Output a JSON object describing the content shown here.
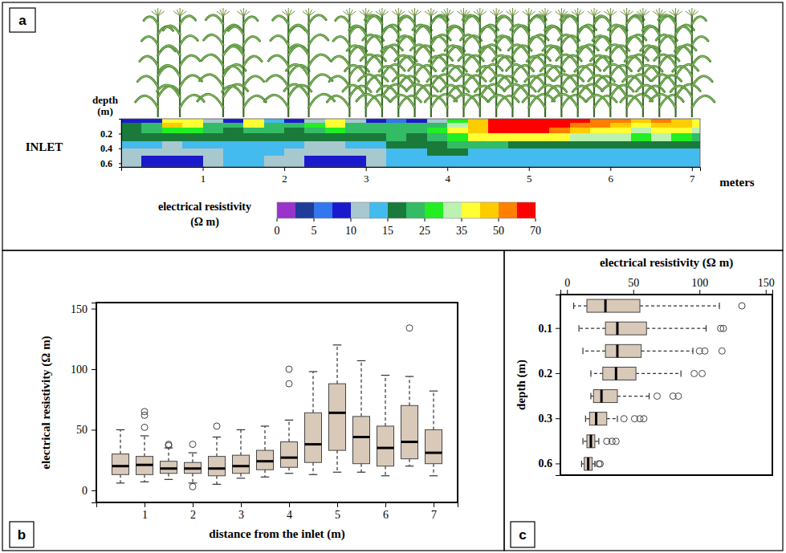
{
  "chart_data": [
    {
      "type": "heatmap",
      "panel": "a",
      "xlabel": "meters",
      "ylabel": "depth (m)",
      "annotations": [
        "INLET"
      ],
      "xlim": [
        0,
        7.1
      ],
      "xticks": [
        1,
        2,
        3,
        4,
        5,
        6,
        7
      ],
      "ylim": [
        0,
        0.65
      ],
      "yticks": [
        0.2,
        0.4,
        0.6
      ],
      "x_edges": [
        0,
        0.25,
        0.5,
        0.75,
        1,
        1.25,
        1.5,
        1.75,
        2,
        2.25,
        2.5,
        2.75,
        3,
        3.25,
        3.5,
        3.75,
        4,
        4.25,
        4.5,
        4.75,
        5,
        5.25,
        5.5,
        5.75,
        6,
        6.25,
        6.5,
        6.75,
        7,
        7.1
      ],
      "y_edges": [
        0,
        0.05,
        0.12,
        0.2,
        0.3,
        0.4,
        0.5,
        0.65
      ],
      "cells": [
        [
          8,
          9,
          42,
          38,
          12,
          9,
          40,
          14,
          9,
          12,
          36,
          10,
          8,
          7,
          9,
          12,
          28,
          45,
          72,
          75,
          75,
          74,
          60,
          55,
          50,
          45,
          52,
          48,
          40
        ],
        [
          18,
          22,
          45,
          40,
          24,
          20,
          38,
          22,
          20,
          26,
          38,
          22,
          20,
          22,
          22,
          24,
          33,
          48,
          75,
          78,
          76,
          72,
          58,
          52,
          45,
          40,
          48,
          45,
          36
        ],
        [
          16,
          20,
          28,
          26,
          22,
          18,
          24,
          20,
          18,
          22,
          26,
          20,
          22,
          24,
          24,
          26,
          35,
          45,
          62,
          65,
          60,
          55,
          45,
          40,
          38,
          34,
          40,
          38,
          30
        ],
        [
          17,
          18,
          18,
          18,
          17,
          16,
          17,
          16,
          16,
          17,
          18,
          17,
          18,
          20,
          19,
          20,
          28,
          38,
          42,
          40,
          38,
          36,
          32,
          30,
          30,
          28,
          30,
          28,
          24
        ],
        [
          14,
          13,
          12,
          13,
          14,
          14,
          14,
          14,
          13,
          12,
          12,
          13,
          14,
          15,
          15,
          17,
          22,
          20,
          20,
          19,
          18,
          18,
          18,
          17,
          17,
          17,
          18,
          17,
          16
        ],
        [
          12,
          11,
          10,
          10,
          12,
          13,
          13,
          13,
          12,
          11,
          10,
          10,
          12,
          13,
          14,
          15,
          15,
          14,
          14,
          14,
          14,
          14,
          14,
          14,
          14,
          14,
          14,
          14,
          14
        ],
        [
          11,
          8,
          8,
          9,
          12,
          13,
          13,
          12,
          12,
          9,
          8,
          8,
          11,
          13,
          13,
          14,
          14,
          14,
          13,
          13,
          13,
          13,
          13,
          14,
          14,
          14,
          14,
          14,
          13
        ]
      ],
      "colorbar": {
        "title": "electrical resistivity (Ω m)",
        "range": [
          0,
          70
        ],
        "ticks": [
          0,
          5,
          10,
          15,
          25,
          35,
          50,
          70
        ],
        "colors": [
          "#9933cc",
          "#1f3c99",
          "#3377ee",
          "#1a1acc",
          "#a8c8d0",
          "#44bbee",
          "#1a7a3a",
          "#33bb66",
          "#22ee22",
          "#bbf2b0",
          "#ffff33",
          "#ffcc00",
          "#ff7f00",
          "#ff0000"
        ]
      }
    },
    {
      "type": "box",
      "panel": "b",
      "xlabel": "distance from the inlet (m)",
      "ylabel": "electrical resistivity (Ω m)",
      "x": [
        0.5,
        1,
        1.5,
        2,
        2.5,
        3,
        3.5,
        4,
        4.5,
        5,
        5.5,
        6,
        6.5,
        7
      ],
      "xlim": [
        0,
        7.5
      ],
      "xticks": [
        1,
        2,
        3,
        4,
        5,
        6,
        7
      ],
      "ylim": [
        -10,
        155
      ],
      "yticks": [
        0,
        50,
        100,
        150
      ],
      "whisker_low": [
        6,
        7,
        9,
        6,
        5,
        10,
        11,
        14,
        13,
        15,
        15,
        12,
        20,
        12
      ],
      "q1": [
        13,
        13,
        14,
        14,
        12,
        14,
        17,
        19,
        23,
        33,
        22,
        20,
        26,
        22
      ],
      "median": [
        20,
        21,
        18,
        18,
        18,
        20,
        24,
        27,
        38,
        64,
        44,
        35,
        40,
        31
      ],
      "q3": [
        30,
        28,
        24,
        23,
        28,
        29,
        33,
        40,
        64,
        88,
        61,
        53,
        70,
        50
      ],
      "whisker_high": [
        50,
        45,
        35,
        31,
        44,
        50,
        53,
        58,
        98,
        120,
        107,
        95,
        94,
        82
      ],
      "outliers": [
        [],
        [
          52,
          62,
          65
        ],
        [
          37,
          38
        ],
        [
          3,
          38
        ],
        [
          53
        ],
        [],
        [],
        [
          88,
          100
        ],
        [],
        [],
        [],
        [],
        [
          134
        ],
        []
      ],
      "color": "#d9c9b9"
    },
    {
      "type": "box",
      "orientation": "horizontal",
      "panel": "c",
      "xlabel": "electrical resistivity (Ω m)",
      "ylabel": "depth (m)",
      "categories": [
        null,
        0.1,
        null,
        0.2,
        null,
        0.3,
        null,
        0.6
      ],
      "xlim": [
        -5,
        155
      ],
      "xticks": [
        0,
        50,
        100,
        150
      ],
      "whisker_low": [
        5,
        9,
        12,
        18,
        18,
        14,
        12,
        11
      ],
      "q1": [
        15,
        29,
        29,
        27,
        20,
        17,
        15,
        13
      ],
      "median": [
        29,
        38,
        38,
        37,
        26,
        22,
        18,
        16
      ],
      "q3": [
        55,
        60,
        56,
        52,
        38,
        30,
        21,
        19
      ],
      "whisker_high": [
        115,
        105,
        95,
        86,
        62,
        38,
        24,
        21
      ],
      "outliers": [
        [
          132
        ],
        [
          116,
          118
        ],
        [
          100,
          104,
          117
        ],
        [
          96,
          102
        ],
        [
          68,
          80,
          84
        ],
        [
          43,
          51,
          55,
          58
        ],
        [
          30,
          34,
          37
        ],
        [
          24,
          25
        ]
      ],
      "color": "#d9c9b9"
    }
  ]
}
